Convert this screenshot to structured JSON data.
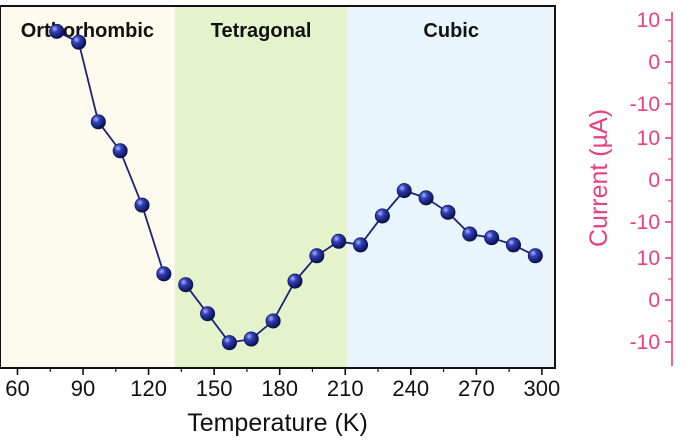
{
  "chart_data": [
    {
      "type": "scatter",
      "title": "",
      "xlabel": "Temperature (K)",
      "ylabel": "",
      "xlim": [
        52,
        306
      ],
      "ylim": [
        0,
        100
      ],
      "x_ticks": [
        "60",
        "90",
        "120",
        "150",
        "180",
        "210",
        "240",
        "270",
        "300"
      ],
      "x_tick_values": [
        60,
        90,
        120,
        150,
        180,
        210,
        240,
        270,
        300
      ],
      "phases": [
        {
          "name": "Orthorhombic",
          "range": [
            52,
            132
          ],
          "color": "#fdfaee"
        },
        {
          "name": "Tetragonal",
          "range": [
            132,
            211
          ],
          "color": "#e4f3cb"
        },
        {
          "name": "Cubic",
          "range": [
            211,
            306
          ],
          "color": "#e9f5fd"
        }
      ],
      "series": [
        {
          "color": "#1a237e",
          "segments": [
            {
              "x": [
                78,
                88,
                97,
                107,
                117,
                127
              ],
              "y": [
                93,
                90,
                68,
                60,
                45,
                26
              ]
            },
            {
              "x": [
                137,
                147,
                157,
                167,
                177,
                187,
                197,
                207,
                217,
                227,
                237,
                247,
                257,
                267,
                277,
                287,
                297
              ],
              "y": [
                23,
                15,
                7,
                8,
                13,
                24,
                31,
                35,
                34,
                42,
                49,
                47,
                43,
                37,
                36,
                34,
                31
              ]
            }
          ]
        }
      ],
      "grid": false
    },
    {
      "type": "line",
      "ylabel": "Current (µA)",
      "axis_side": "right",
      "panels": [
        {
          "ticks": [
            "10",
            "0",
            "-10"
          ],
          "tick_values": [
            10,
            0,
            -10
          ]
        },
        {
          "ticks": [
            "10",
            "0",
            "-10"
          ],
          "tick_values": [
            10,
            0,
            -10
          ]
        },
        {
          "ticks": [
            "10",
            "0",
            "-10"
          ],
          "tick_values": [
            10,
            0,
            -10
          ]
        }
      ],
      "color": "#e8407f"
    }
  ]
}
